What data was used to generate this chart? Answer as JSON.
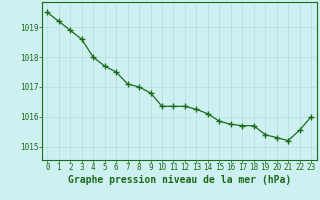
{
  "x": [
    0,
    1,
    2,
    3,
    4,
    5,
    6,
    7,
    8,
    9,
    10,
    11,
    12,
    13,
    14,
    15,
    16,
    17,
    18,
    19,
    20,
    21,
    22,
    23
  ],
  "y": [
    1019.5,
    1019.2,
    1018.9,
    1018.6,
    1018.0,
    1017.7,
    1017.5,
    1017.1,
    1017.0,
    1016.8,
    1016.35,
    1016.35,
    1016.35,
    1016.25,
    1016.1,
    1015.85,
    1015.75,
    1015.7,
    1015.7,
    1015.4,
    1015.3,
    1015.2,
    1015.55,
    1016.0
  ],
  "line_color": "#1a6b1a",
  "marker_color": "#1a6b1a",
  "bg_color": "#cff0f0",
  "grid_color": "#b0e0e0",
  "xlabel": "Graphe pression niveau de la mer (hPa)",
  "xlabel_color": "#1a6b1a",
  "tick_color": "#1a6b1a",
  "ylabel_ticks": [
    1015,
    1016,
    1017,
    1018,
    1019
  ],
  "ylim": [
    1014.55,
    1019.85
  ],
  "xlim": [
    -0.5,
    23.5
  ],
  "xticks": [
    0,
    1,
    2,
    3,
    4,
    5,
    6,
    7,
    8,
    9,
    10,
    11,
    12,
    13,
    14,
    15,
    16,
    17,
    18,
    19,
    20,
    21,
    22,
    23
  ],
  "tick_fontsize": 5.5,
  "xlabel_fontsize": 7.0,
  "marker_size": 4,
  "line_width": 0.9
}
